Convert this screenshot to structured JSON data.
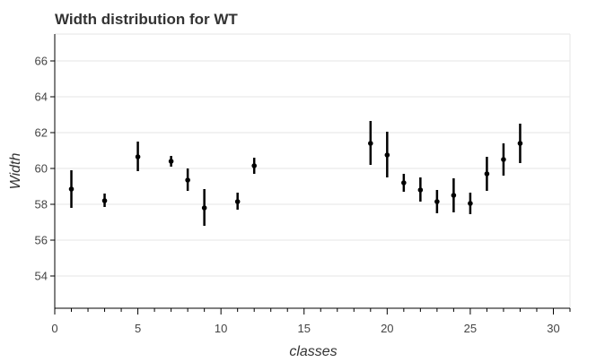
{
  "chart_data": {
    "type": "scatter",
    "title": "Width distribution for WT",
    "xlabel": "classes",
    "ylabel": "Width",
    "xlim": [
      0,
      31
    ],
    "ylim": [
      52.2,
      67.5
    ],
    "xticks": [
      0,
      5,
      10,
      15,
      20,
      25,
      30
    ],
    "yticks": [
      54,
      56,
      58,
      60,
      62,
      64,
      66
    ],
    "grid": true,
    "legend": "none",
    "points": [
      {
        "x": 1,
        "y": 58.85,
        "low": 57.8,
        "high": 59.9
      },
      {
        "x": 3,
        "y": 58.2,
        "low": 57.85,
        "high": 58.6
      },
      {
        "x": 5,
        "y": 60.65,
        "low": 59.85,
        "high": 61.5
      },
      {
        "x": 7,
        "y": 60.4,
        "low": 60.1,
        "high": 60.7
      },
      {
        "x": 8,
        "y": 59.35,
        "low": 58.75,
        "high": 60.0
      },
      {
        "x": 9,
        "y": 57.8,
        "low": 56.8,
        "high": 58.85
      },
      {
        "x": 11,
        "y": 58.15,
        "low": 57.7,
        "high": 58.65
      },
      {
        "x": 12,
        "y": 60.15,
        "low": 59.7,
        "high": 60.6
      },
      {
        "x": 19,
        "y": 61.4,
        "low": 60.2,
        "high": 62.65
      },
      {
        "x": 20,
        "y": 60.75,
        "low": 59.5,
        "high": 62.05
      },
      {
        "x": 21,
        "y": 59.2,
        "low": 58.7,
        "high": 59.7
      },
      {
        "x": 22,
        "y": 58.8,
        "low": 58.15,
        "high": 59.5
      },
      {
        "x": 23,
        "y": 58.15,
        "low": 57.5,
        "high": 58.8
      },
      {
        "x": 24,
        "y": 58.5,
        "low": 57.55,
        "high": 59.45
      },
      {
        "x": 25,
        "y": 58.05,
        "low": 57.45,
        "high": 58.65
      },
      {
        "x": 26,
        "y": 59.7,
        "low": 58.75,
        "high": 60.65
      },
      {
        "x": 27,
        "y": 60.5,
        "low": 59.6,
        "high": 61.4
      },
      {
        "x": 28,
        "y": 61.4,
        "low": 60.3,
        "high": 62.5
      }
    ]
  }
}
